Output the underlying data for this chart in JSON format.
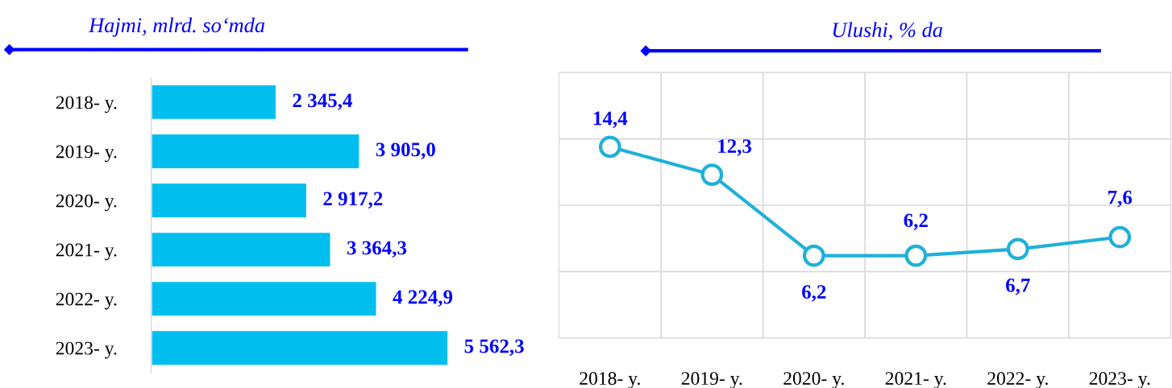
{
  "chart_data": [
    {
      "type": "bar",
      "orientation": "horizontal",
      "title": "Hajmi, mlrd. so‘mda",
      "categories": [
        "2018- y.",
        "2019- y.",
        "2020- y.",
        "2021- y.",
        "2022- y.",
        "2023- y."
      ],
      "values": [
        2345.4,
        3905.0,
        2917.2,
        3364.3,
        4224.9,
        5562.3
      ],
      "value_labels": [
        "2 345,4",
        "3 905,0",
        "2 917,2",
        "3 364,3",
        "4 224,9",
        "5 562,3"
      ],
      "color": "#00bfef"
    },
    {
      "type": "line",
      "title": "Ulushi, % da",
      "categories": [
        "2018- y.",
        "2019- y.",
        "2020- y.",
        "2021- y.",
        "2022- y.",
        "2023- y."
      ],
      "values": [
        14.4,
        12.3,
        6.2,
        6.2,
        6.7,
        7.6
      ],
      "value_labels": [
        "14,4",
        "12,3",
        "6,2",
        "6,2",
        "6,7",
        "7,6"
      ],
      "color": "#1fb0d8",
      "marker": "circle",
      "line_style": "solid",
      "ylim": [
        0,
        20
      ],
      "yticks": [
        {
          "value": 0,
          "label": null
        },
        {
          "value": 5,
          "label": null
        },
        {
          "value": 10,
          "label": null
        },
        {
          "value": 15,
          "label": null
        },
        {
          "value": 20,
          "label": null
        }
      ],
      "grid": true
    }
  ]
}
